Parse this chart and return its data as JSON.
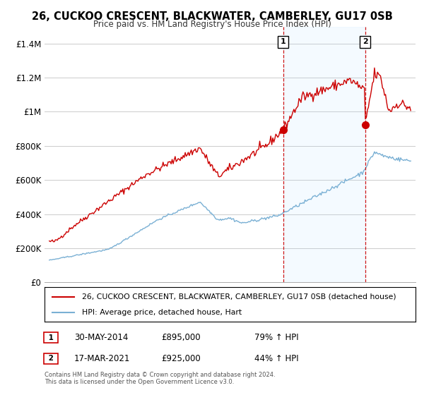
{
  "title": "26, CUCKOO CRESCENT, BLACKWATER, CAMBERLEY, GU17 0SB",
  "subtitle": "Price paid vs. HM Land Registry's House Price Index (HPI)",
  "legend_line1": "26, CUCKOO CRESCENT, BLACKWATER, CAMBERLEY, GU17 0SB (detached house)",
  "legend_line2": "HPI: Average price, detached house, Hart",
  "sale1_date": "30-MAY-2014",
  "sale1_price": 895000,
  "sale1_label": "79% ↑ HPI",
  "sale1_year": 2014.41,
  "sale2_date": "17-MAR-2021",
  "sale2_price": 925000,
  "sale2_label": "44% ↑ HPI",
  "sale2_year": 2021.21,
  "red_color": "#cc0000",
  "blue_color": "#7ab0d4",
  "background_color": "#ffffff",
  "grid_color": "#cccccc",
  "footer_text": "Contains HM Land Registry data © Crown copyright and database right 2024.\nThis data is licensed under the Open Government Licence v3.0.",
  "ylim": [
    0,
    1500000
  ],
  "xlim": [
    1994.6,
    2025.4
  ],
  "yticks": [
    0,
    200000,
    400000,
    600000,
    800000,
    1000000,
    1200000,
    1400000
  ],
  "ytick_labels": [
    "£0",
    "£200K",
    "£400K",
    "£600K",
    "£800K",
    "£1M",
    "£1.2M",
    "£1.4M"
  ]
}
